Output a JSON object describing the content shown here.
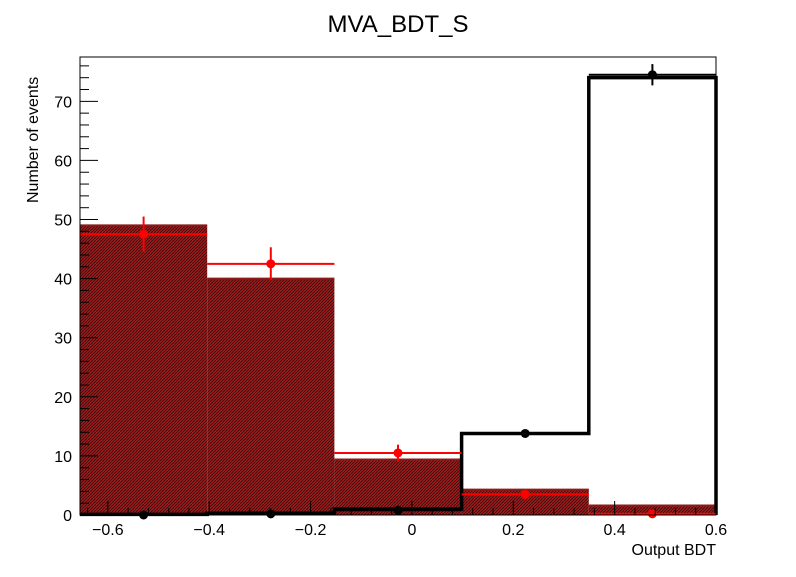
{
  "chart_data": {
    "type": "bar",
    "title": "MVA_BDT_S",
    "xlabel": "Output BDT",
    "ylabel": "Number of events",
    "xlim": [
      -0.655,
      0.6
    ],
    "ylim": [
      0,
      77.5
    ],
    "bin_edges": [
      -0.655,
      -0.404,
      -0.153,
      0.098,
      0.349,
      0.6
    ],
    "x_ticks": [
      -0.6,
      -0.4,
      -0.2,
      0,
      0.2,
      0.4,
      0.6
    ],
    "x_tick_labels": [
      "−0.6",
      "−0.4",
      "−0.2",
      "0",
      "0.2",
      "0.4",
      "0.6"
    ],
    "y_ticks": [
      0,
      10,
      20,
      30,
      40,
      50,
      60,
      70
    ],
    "y_tick_labels": [
      "0",
      "10",
      "20",
      "30",
      "40",
      "50",
      "60",
      "70"
    ],
    "grid": false,
    "series": [
      {
        "style": "filled-hatched-histogram",
        "color": "#8b1a1a",
        "values": [
          49.0,
          40.0,
          9.4,
          4.3,
          1.6
        ]
      },
      {
        "style": "step-histogram",
        "color": "#000000",
        "values": [
          0.1,
          0.3,
          1.0,
          13.8,
          74.0
        ]
      },
      {
        "style": "points-with-errors",
        "color": "#ff0000",
        "x": [
          -0.5295,
          -0.2785,
          -0.0275,
          0.2235,
          0.4745
        ],
        "values": [
          47.5,
          42.5,
          10.5,
          3.5,
          0.2
        ],
        "errors": [
          3.0,
          2.8,
          1.4,
          0.8,
          0.2
        ]
      },
      {
        "style": "points-with-errors",
        "color": "#000000",
        "x": [
          -0.5295,
          -0.2785,
          -0.0275,
          0.2235,
          0.4745
        ],
        "values": [
          0.0,
          0.2,
          0.8,
          13.8,
          74.5
        ],
        "errors": [
          0.1,
          0.4,
          0.6,
          0.6,
          1.8
        ]
      }
    ]
  }
}
